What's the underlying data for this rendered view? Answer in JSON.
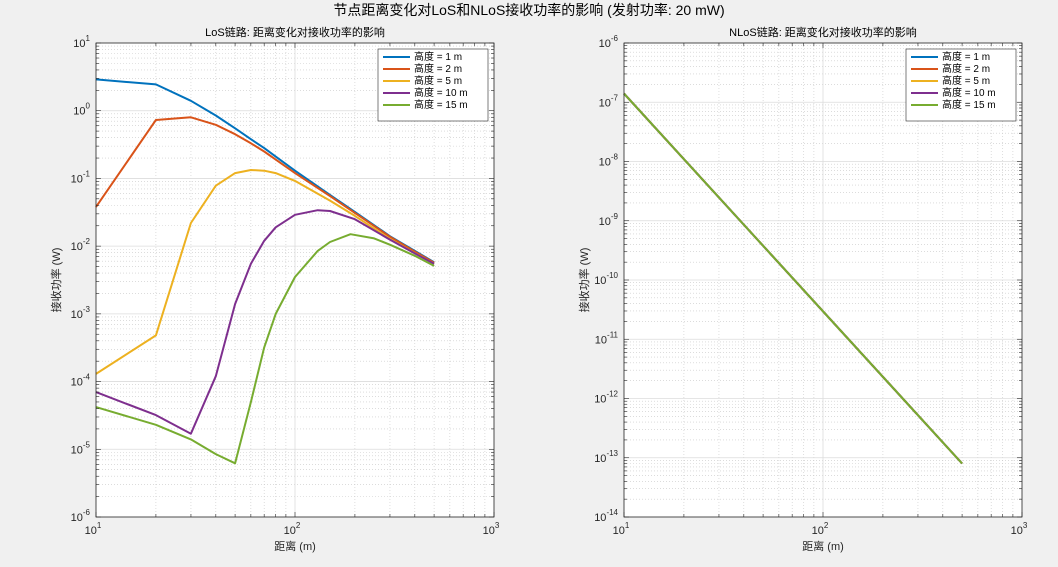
{
  "suptitle": "节点距离变化对LoS和NLoS接收功率的影响 (发射功率: 20 mW)",
  "chart_data": [
    {
      "type": "line",
      "title": "LoS链路: 距离变化对接收功率的影响",
      "xlabel": "距离 (m)",
      "ylabel": "接收功率 (W)",
      "xscale": "log",
      "yscale": "log",
      "xlim": [
        10,
        1000
      ],
      "ylim": [
        1e-06,
        10
      ],
      "x_ticks": [
        "10^1",
        "10^2",
        "10^3"
      ],
      "y_ticks": [
        "10^-6",
        "10^-5",
        "10^-4",
        "10^-3",
        "10^-2",
        "10^-1",
        "10^0",
        "10^1"
      ],
      "grid": true,
      "legend_position": "top-right",
      "series": [
        {
          "name": "高度 = 1 m",
          "color": "#0072BD",
          "x": [
            10,
            20,
            30,
            40,
            50,
            60,
            70,
            80,
            100,
            150,
            200,
            300,
            400,
            500
          ],
          "y": [
            2.9,
            2.45,
            1.4,
            0.85,
            0.55,
            0.38,
            0.28,
            0.21,
            0.13,
            0.057,
            0.032,
            0.014,
            0.0085,
            0.0058
          ]
        },
        {
          "name": "高度 = 2 m",
          "color": "#D95319",
          "x": [
            10,
            20,
            30,
            40,
            50,
            60,
            70,
            80,
            100,
            150,
            200,
            300,
            400,
            500
          ],
          "y": [
            0.038,
            0.73,
            0.8,
            0.62,
            0.45,
            0.33,
            0.25,
            0.19,
            0.12,
            0.055,
            0.031,
            0.0138,
            0.0083,
            0.0057
          ]
        },
        {
          "name": "高度 = 5 m",
          "color": "#EDB120",
          "x": [
            10,
            20,
            30,
            40,
            50,
            60,
            70,
            80,
            100,
            150,
            200,
            300,
            400,
            500
          ],
          "y": [
            0.00013,
            0.00048,
            0.022,
            0.078,
            0.12,
            0.133,
            0.13,
            0.12,
            0.092,
            0.047,
            0.028,
            0.0128,
            0.0079,
            0.0055
          ]
        },
        {
          "name": "高度 = 10 m",
          "color": "#7E2F8E",
          "x": [
            10,
            20,
            30,
            40,
            50,
            60,
            70,
            80,
            100,
            130,
            150,
            200,
            300,
            400,
            500
          ],
          "y": [
            7e-05,
            3.2e-05,
            1.7e-05,
            0.00012,
            0.0014,
            0.0055,
            0.012,
            0.019,
            0.029,
            0.034,
            0.033,
            0.025,
            0.0125,
            0.0078,
            0.0055
          ]
        },
        {
          "name": "高度 = 15 m",
          "color": "#77AC30",
          "x": [
            10,
            20,
            30,
            40,
            50,
            60,
            70,
            80,
            100,
            130,
            150,
            190,
            250,
            300,
            400,
            500
          ],
          "y": [
            4.2e-05,
            2.3e-05,
            1.4e-05,
            8.5e-06,
            6.2e-06,
            5e-05,
            0.00032,
            0.001,
            0.0035,
            0.0085,
            0.0115,
            0.015,
            0.013,
            0.0105,
            0.0072,
            0.0051
          ]
        }
      ]
    },
    {
      "type": "line",
      "title": "NLoS链路: 距离变化对接收功率的影响",
      "xlabel": "距离 (m)",
      "ylabel": "接收功率 (W)",
      "xscale": "log",
      "yscale": "log",
      "xlim": [
        10,
        1000
      ],
      "ylim": [
        1e-14,
        1e-06
      ],
      "x_ticks": [
        "10^1",
        "10^2",
        "10^3"
      ],
      "y_ticks": [
        "10^-14",
        "10^-13",
        "10^-12",
        "10^-11",
        "10^-10",
        "10^-9",
        "10^-8",
        "10^-7",
        "10^-6"
      ],
      "grid": true,
      "legend_position": "top-right",
      "series": [
        {
          "name": "高度 = 1 m",
          "color": "#0072BD",
          "x": [
            10,
            500
          ],
          "y": [
            1.4e-07,
            8e-14
          ]
        },
        {
          "name": "高度 = 2 m",
          "color": "#D95319",
          "x": [
            10,
            500
          ],
          "y": [
            1.4e-07,
            8e-14
          ]
        },
        {
          "name": "高度 = 5 m",
          "color": "#EDB120",
          "x": [
            10,
            500
          ],
          "y": [
            1.4e-07,
            8e-14
          ]
        },
        {
          "name": "高度 = 10 m",
          "color": "#7E2F8E",
          "x": [
            10,
            500
          ],
          "y": [
            1.4e-07,
            8e-14
          ]
        },
        {
          "name": "高度 = 15 m",
          "color": "#77AC30",
          "x": [
            10,
            500
          ],
          "y": [
            1.4e-07,
            8e-14
          ]
        }
      ]
    }
  ]
}
